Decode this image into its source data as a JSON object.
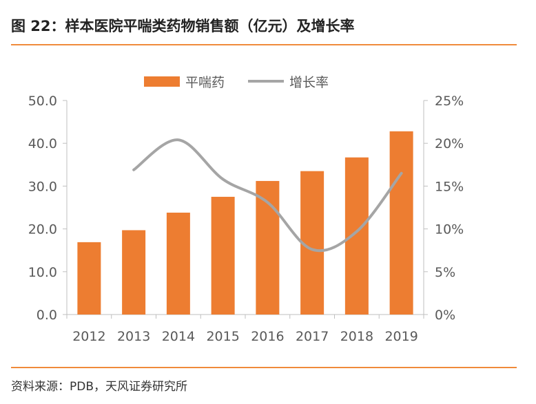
{
  "header": {
    "title": "图 22：样本医院平喘类药物销售额（亿元）及增长率"
  },
  "footer": {
    "source": "资料来源：PDB，天风证券研究所"
  },
  "chart_data": {
    "type": "bar+line",
    "categories": [
      "2012",
      "2013",
      "2014",
      "2015",
      "2016",
      "2017",
      "2018",
      "2019"
    ],
    "series": [
      {
        "name": "平喘药",
        "type": "bar",
        "axis": "left",
        "values": [
          16.9,
          19.7,
          23.8,
          27.5,
          31.2,
          33.5,
          36.7,
          42.8
        ]
      },
      {
        "name": "增长率",
        "type": "line",
        "axis": "right",
        "smooth": true,
        "values": [
          null,
          16.9,
          20.4,
          15.8,
          13.1,
          7.6,
          9.7,
          16.5
        ]
      }
    ],
    "y_left": {
      "min": 0,
      "max": 50,
      "step": 10,
      "ticks": [
        "0.0",
        "10.0",
        "20.0",
        "30.0",
        "40.0",
        "50.0"
      ]
    },
    "y_right": {
      "min": 0,
      "max": 25,
      "step": 5,
      "ticks": [
        "0%",
        "5%",
        "10%",
        "15%",
        "20%",
        "25%"
      ]
    },
    "legend": {
      "position": "top",
      "items": [
        "平喘药",
        "增长率"
      ]
    },
    "colors": {
      "bar": "#ed7d31",
      "line": "#a5a5a5",
      "axis": "#bfbfbf",
      "text": "#595959",
      "rule": "#f08a3a"
    },
    "grid": false
  }
}
